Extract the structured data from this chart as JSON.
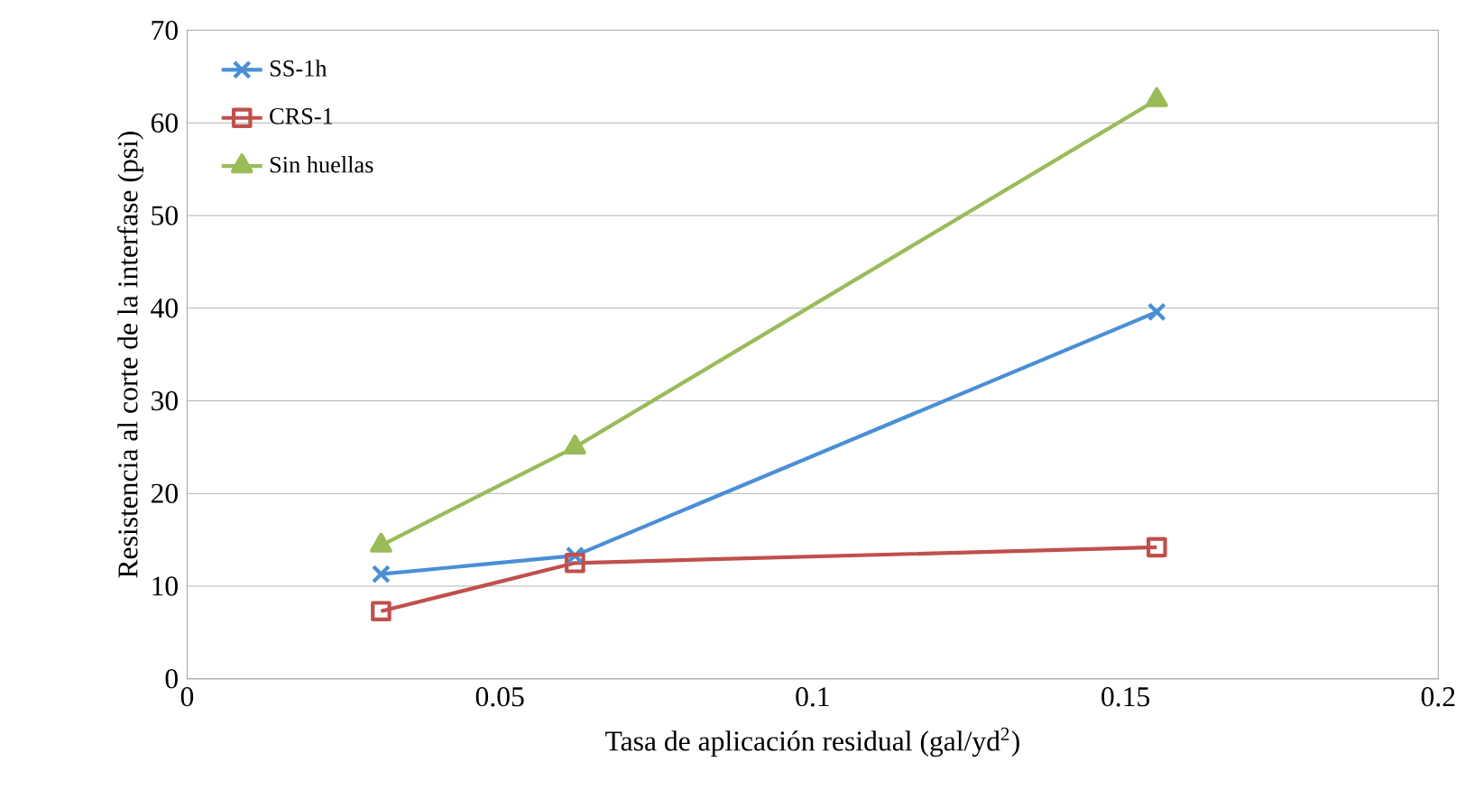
{
  "chart_data": {
    "type": "line",
    "xlabel": "Tasa de aplicación residual (gal/yd$^{2}$)",
    "ylabel": "Resistencia al corte de la interfase (psi)",
    "x": [
      0.031,
      0.062,
      0.155
    ],
    "series": [
      {
        "name": "SS-1h",
        "color": "#4a8fd6",
        "marker": "cross",
        "values": [
          11.3,
          13.3,
          39.6
        ]
      },
      {
        "name": "CRS-1",
        "color": "#c0504d",
        "marker": "square",
        "values": [
          7.3,
          12.5,
          14.2
        ]
      },
      {
        "name": "Sin huellas",
        "color": "#9bbb59",
        "marker": "triangle",
        "values": [
          14.4,
          25,
          62.5
        ]
      }
    ],
    "xlim": [
      0,
      0.2
    ],
    "xticks": [
      0,
      0.05,
      0.1,
      0.15,
      0.2
    ],
    "ylim": [
      0,
      70
    ],
    "yticks": [
      0,
      10,
      20,
      30,
      40,
      50,
      60,
      70
    ],
    "grid": "y",
    "legend": "top left",
    "line_style": "solid"
  }
}
